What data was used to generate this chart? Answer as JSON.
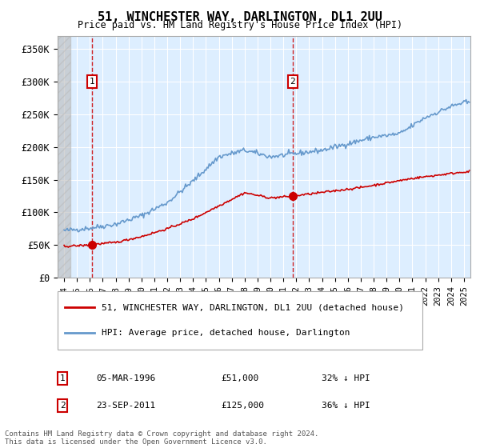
{
  "title": "51, WINCHESTER WAY, DARLINGTON, DL1 2UU",
  "subtitle": "Price paid vs. HM Land Registry's House Price Index (HPI)",
  "hpi_label": "HPI: Average price, detached house, Darlington",
  "price_label": "51, WINCHESTER WAY, DARLINGTON, DL1 2UU (detached house)",
  "sale1_date": "05-MAR-1996",
  "sale1_price": 51000,
  "sale1_note": "32% ↓ HPI",
  "sale2_date": "23-SEP-2011",
  "sale2_price": 125000,
  "sale2_note": "36% ↓ HPI",
  "sale1_x": 1996.17,
  "sale2_x": 2011.72,
  "hpi_color": "#6699cc",
  "price_color": "#cc0000",
  "marker_color": "#cc0000",
  "dashed_line_color": "#cc0000",
  "background_plot": "#ddeeff",
  "ylim": [
    0,
    370000
  ],
  "xlim_start": 1993.5,
  "xlim_end": 2025.5,
  "footer": "Contains HM Land Registry data © Crown copyright and database right 2024.\nThis data is licensed under the Open Government Licence v3.0.",
  "yticks": [
    0,
    50000,
    100000,
    150000,
    200000,
    250000,
    300000,
    350000
  ],
  "ytick_labels": [
    "£0",
    "£50K",
    "£100K",
    "£150K",
    "£200K",
    "£250K",
    "£300K",
    "£350K"
  ]
}
